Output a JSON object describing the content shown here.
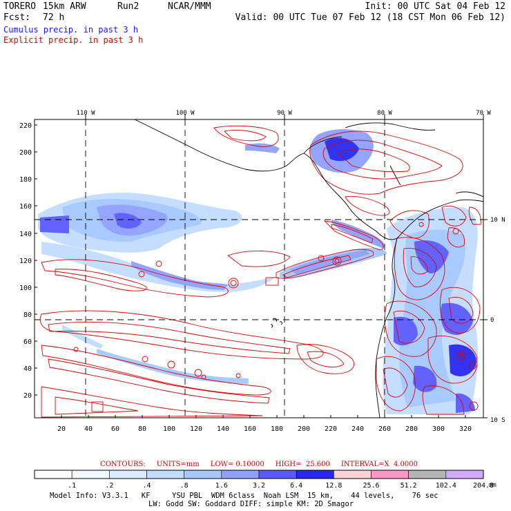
{
  "header": {
    "model_name": "TORERO",
    "resolution": "15km ARW",
    "run": "Run2",
    "org": "NCAR/MMM",
    "init": "Init: 00 UTC Sat 04 Feb 12",
    "fcst_label": "Fcst:",
    "fcst_value": "72 h",
    "valid": "Valid: 00 UTC Tue 07 Feb 12 (18 CST Mon 06 Feb 12)"
  },
  "legend": {
    "cumulus": "Cumulus precip. in past 3 h",
    "cumulus_color": "#1a1aff",
    "explicit": "Explicit precip. in past 3 h",
    "explicit_color": "#e00000"
  },
  "map": {
    "top_lon_labels": [
      "110 W",
      "100 W",
      "90 W",
      "80 W",
      "70 W"
    ],
    "right_lat_labels": [
      "10 N",
      "0",
      "10 S"
    ],
    "y_ticks": [
      "220",
      "200",
      "180",
      "160",
      "140",
      "120",
      "100",
      "80",
      "60",
      "40",
      "20"
    ],
    "x_ticks": [
      "20",
      "40",
      "60",
      "80",
      "100",
      "120",
      "140",
      "160",
      "180",
      "200",
      "220",
      "240",
      "260",
      "280",
      "300",
      "320"
    ]
  },
  "contours": {
    "label": "CONTOURS:",
    "units": "UNITS=mm",
    "low": "LOW= 0.10000",
    "high": "HIGH=  25.600",
    "interval": "INTERVAL=X  4.0000"
  },
  "colorbar": {
    "labels": [
      ".1",
      ".2",
      ".4",
      ".8",
      "1.6",
      "3.2",
      "6.4",
      "12.8",
      "25.6",
      "51.2",
      "102.4",
      "204.8"
    ],
    "colors": [
      "#ffffff",
      "#f4f8ff",
      "#dcebff",
      "#c2ddff",
      "#a4c8ff",
      "#8fa0ff",
      "#5a5aff",
      "#2828f0",
      "#ffd2d8",
      "#ff96c8",
      "#b4b4b4",
      "#d2aaff"
    ],
    "unit": "mm"
  },
  "model_info": {
    "line1": "Model Info: V3.3.1   KF     YSU PBL  WDM 6class  Noah LSM  15 km,    44 levels,    76 sec",
    "line2": "LW: Godd SW: Goddard DIFF: simple KM: 2D Smagor"
  }
}
